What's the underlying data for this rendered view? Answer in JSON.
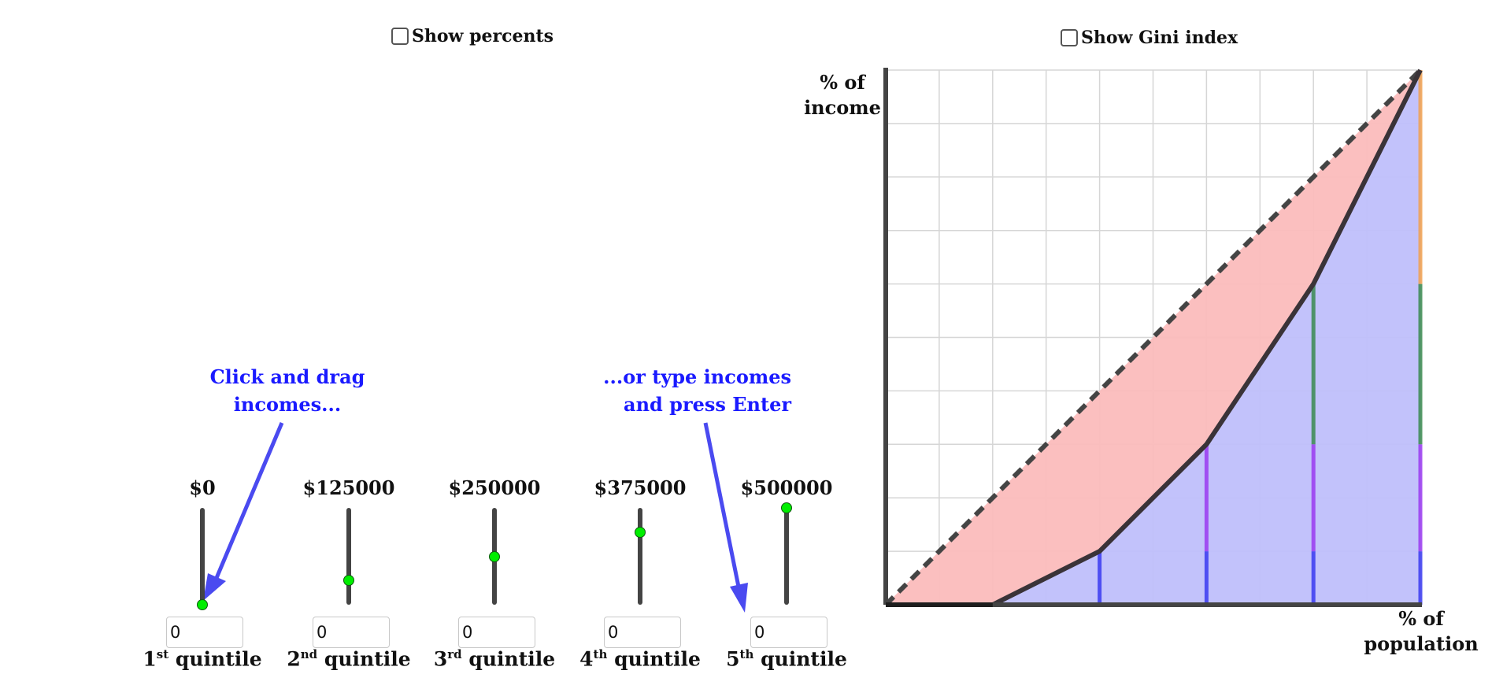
{
  "controls": {
    "show_percents_label": "Show percents",
    "show_gini_label": "Show Gini index"
  },
  "hints": {
    "drag_line1": "Click and drag",
    "drag_line2": "incomes...",
    "type_line1": "...or type incomes",
    "type_line2": "and press Enter"
  },
  "quintiles": [
    {
      "income_label": "$0",
      "slider_fraction": 0.0,
      "input_value": "0",
      "ordinal": "1",
      "suffix": "st",
      "word": "quintile"
    },
    {
      "income_label": "$125000",
      "slider_fraction": 0.25,
      "input_value": "0",
      "ordinal": "2",
      "suffix": "nd",
      "word": "quintile"
    },
    {
      "income_label": "$250000",
      "slider_fraction": 0.5,
      "input_value": "0",
      "ordinal": "3",
      "suffix": "rd",
      "word": "quintile"
    },
    {
      "income_label": "$375000",
      "slider_fraction": 0.75,
      "input_value": "0",
      "ordinal": "4",
      "suffix": "th",
      "word": "quintile"
    },
    {
      "income_label": "$500000",
      "slider_fraction": 1.0,
      "input_value": "0",
      "ordinal": "5",
      "suffix": "th",
      "word": "quintile"
    }
  ],
  "chart": {
    "ylabel_line1": "% of",
    "ylabel_line2": "income",
    "xlabel_line1": "% of",
    "xlabel_line2": "population"
  },
  "chart_data": {
    "type": "area",
    "title": "",
    "xlim": [
      0,
      1
    ],
    "ylim": [
      0,
      1
    ],
    "grid": true,
    "grid_step": 0.1,
    "equality_line": {
      "x": [
        0,
        1
      ],
      "y": [
        0,
        1
      ],
      "style": "dashed"
    },
    "lorenz_curve": {
      "x": [
        0,
        0.2,
        0.4,
        0.6,
        0.8,
        1.0
      ],
      "y": [
        0,
        0,
        0.1,
        0.3,
        0.6,
        1.0
      ]
    },
    "quintile_segments": [
      {
        "quintile": "1st",
        "color": "#e87a2a",
        "share": 0.0
      },
      {
        "quintile": "2nd",
        "color": "#3a3af0",
        "share": 0.1
      },
      {
        "quintile": "3rd",
        "color": "#9a3af0",
        "share": 0.2
      },
      {
        "quintile": "4th",
        "color": "#3a8a50",
        "share": 0.3
      },
      {
        "quintile": "5th",
        "color": "#f0a050",
        "share": 0.4
      }
    ],
    "colors": {
      "inequality_area": "#fbbcbc",
      "lorenz_area": "#bfbffb",
      "axis": "#444444"
    }
  }
}
